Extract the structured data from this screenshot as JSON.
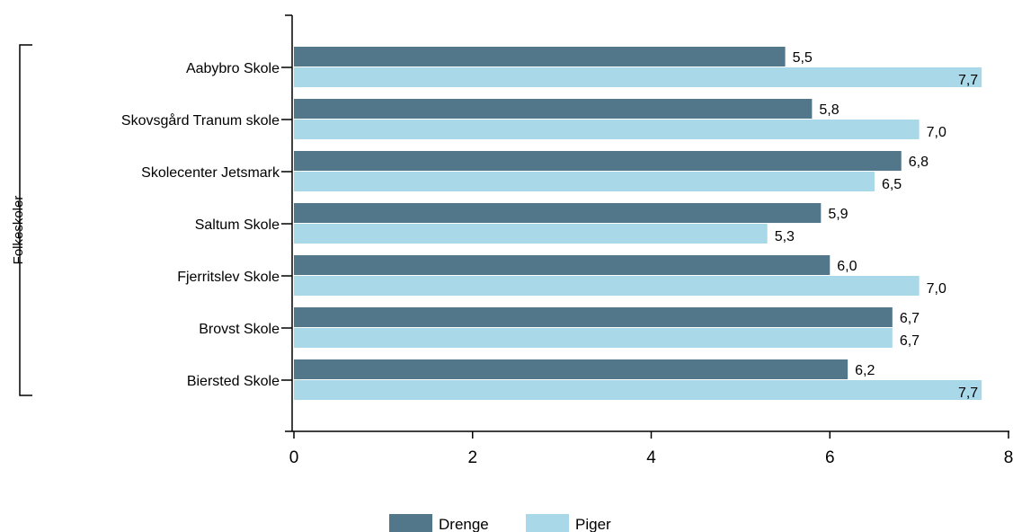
{
  "chart_data": {
    "type": "bar",
    "orientation": "horizontal",
    "group_label": "Folkeskoler",
    "categories": [
      "Aabybro Skole",
      "Skovsgård Tranum skole",
      "Skolecenter Jetsmark",
      "Saltum Skole",
      "Fjerritslev Skole",
      "Brovst Skole",
      "Biersted Skole"
    ],
    "series": [
      {
        "name": "Drenge",
        "color": "#53778a",
        "values": [
          5.5,
          5.8,
          6.8,
          5.9,
          6.0,
          6.7,
          6.2
        ],
        "labels": [
          "5,5",
          "5,8",
          "6,8",
          "5,9",
          "6,0",
          "6,7",
          "6,2"
        ]
      },
      {
        "name": "Piger",
        "color": "#a9d8e8",
        "values": [
          7.7,
          7.0,
          6.5,
          5.3,
          7.0,
          6.7,
          7.7
        ],
        "labels": [
          "7,7",
          "7,0",
          "6,5",
          "5,3",
          "7,0",
          "6,7",
          "7,7"
        ]
      }
    ],
    "xlim": [
      0,
      8
    ],
    "xticks": [
      0,
      2,
      4,
      6,
      8
    ],
    "grid": false,
    "legend_position": "bottom"
  }
}
